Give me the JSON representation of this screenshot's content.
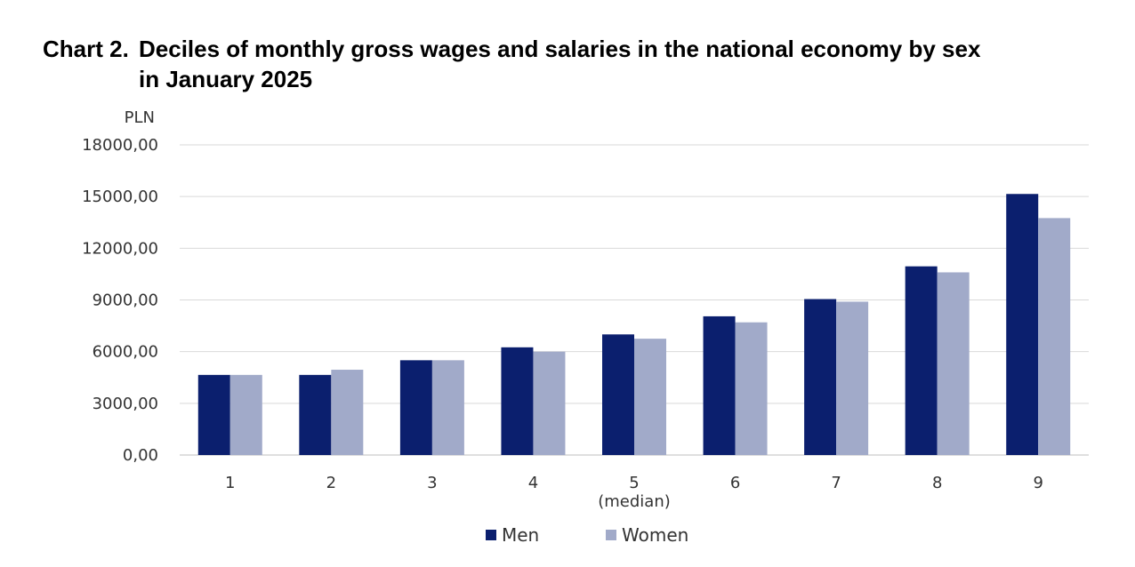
{
  "title": {
    "prefix": "Chart 2.",
    "line1": "Deciles of monthly gross wages and salaries in the national economy by sex",
    "line2": "in January 2025"
  },
  "chart_data": {
    "type": "bar",
    "unit_label": "PLN",
    "categories": [
      "1",
      "2",
      "3",
      "4",
      "5",
      "6",
      "7",
      "8",
      "9"
    ],
    "category_sublabels": {
      "5": "(median)"
    },
    "series": [
      {
        "name": "Men",
        "color": "#0b1f6e",
        "values": [
          4650,
          4650,
          5500,
          6250,
          7000,
          8050,
          9050,
          10950,
          15150
        ]
      },
      {
        "name": "Women",
        "color": "#a1aac9",
        "values": [
          4650,
          4950,
          5500,
          6000,
          6750,
          7700,
          8900,
          10600,
          13750
        ]
      }
    ],
    "ylim": [
      0,
      18000
    ],
    "yticks": [
      "0,00",
      "3000,00",
      "6000,00",
      "9000,00",
      "12000,00",
      "15000,00",
      "18000,00"
    ],
    "ytick_values": [
      0,
      3000,
      6000,
      9000,
      12000,
      15000,
      18000
    ],
    "grid": true,
    "legend_position": "bottom-center"
  }
}
